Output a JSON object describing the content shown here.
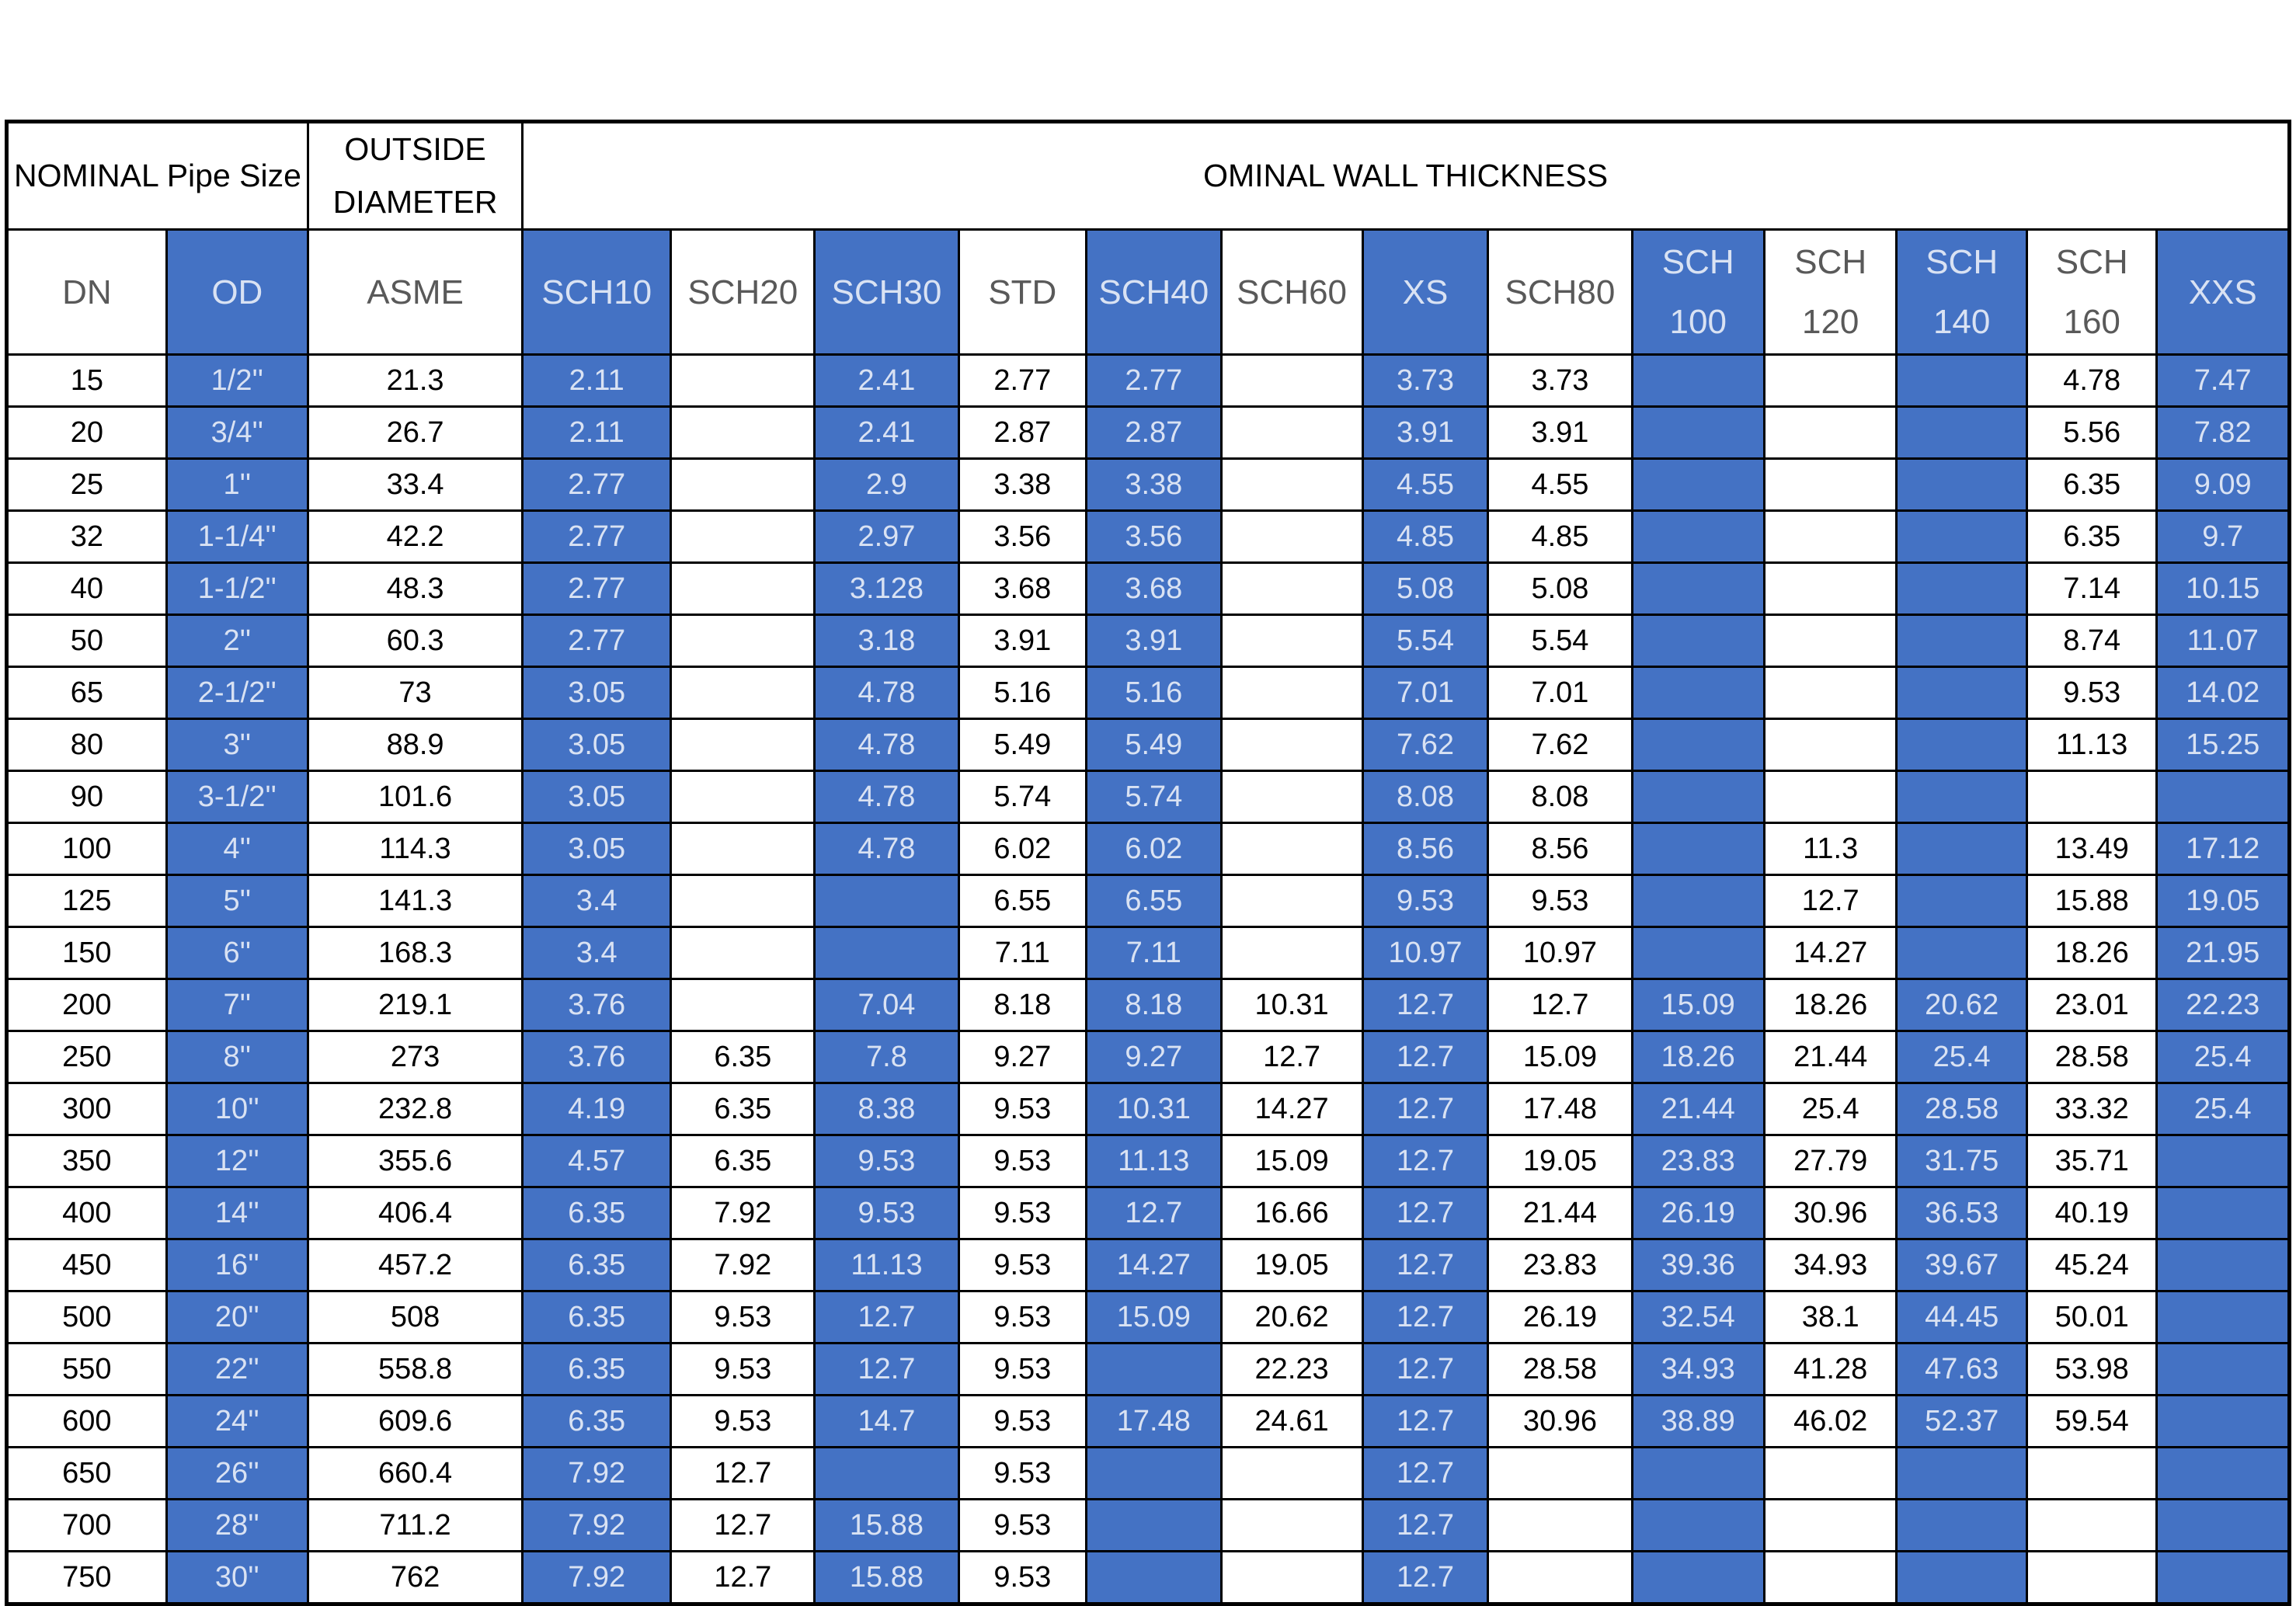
{
  "header": {
    "nominal_pipe_size": "NOMINAL Pipe Size",
    "outside_diameter": "OUTSIDE DIAMETER",
    "wall_thickness_title": "OMINAL WALL THICKNESS"
  },
  "colors": {
    "accent_blue": "#4472c4",
    "text_on_blue": "#d9e2f3",
    "header_text_gray": "#595959",
    "border_black": "#000000"
  },
  "columns": [
    {
      "key": "dn",
      "label": "DN",
      "blue": false
    },
    {
      "key": "od",
      "label": "OD",
      "blue": true
    },
    {
      "key": "asme",
      "label": "ASME",
      "blue": false
    },
    {
      "key": "sch10",
      "label": "SCH10",
      "blue": true
    },
    {
      "key": "sch20",
      "label": "SCH20",
      "blue": false
    },
    {
      "key": "sch30",
      "label": "SCH30",
      "blue": true
    },
    {
      "key": "std",
      "label": "STD",
      "blue": false
    },
    {
      "key": "sch40",
      "label": "SCH40",
      "blue": true
    },
    {
      "key": "sch60",
      "label": "SCH60",
      "blue": false
    },
    {
      "key": "xs",
      "label": "XS",
      "blue": true
    },
    {
      "key": "sch80",
      "label": "SCH80",
      "blue": false
    },
    {
      "key": "sch100",
      "label": "SCH\n100",
      "blue": true
    },
    {
      "key": "sch120",
      "label": "SCH\n120",
      "blue": false
    },
    {
      "key": "sch140",
      "label": "SCH\n140",
      "blue": true
    },
    {
      "key": "sch160",
      "label": "SCH\n160",
      "blue": false
    },
    {
      "key": "xxs",
      "label": "XXS",
      "blue": true
    }
  ],
  "rows": [
    [
      "15",
      "1/2''",
      "21.3",
      "2.11",
      "",
      "2.41",
      "2.77",
      "2.77",
      "",
      "3.73",
      "3.73",
      "",
      "",
      "",
      "4.78",
      "7.47"
    ],
    [
      "20",
      "3/4''",
      "26.7",
      "2.11",
      "",
      "2.41",
      "2.87",
      "2.87",
      "",
      "3.91",
      "3.91",
      "",
      "",
      "",
      "5.56",
      "7.82"
    ],
    [
      "25",
      "1''",
      "33.4",
      "2.77",
      "",
      "2.9",
      "3.38",
      "3.38",
      "",
      "4.55",
      "4.55",
      "",
      "",
      "",
      "6.35",
      "9.09"
    ],
    [
      "32",
      "1-1/4''",
      "42.2",
      "2.77",
      "",
      "2.97",
      "3.56",
      "3.56",
      "",
      "4.85",
      "4.85",
      "",
      "",
      "",
      "6.35",
      "9.7"
    ],
    [
      "40",
      "1-1/2''",
      "48.3",
      "2.77",
      "",
      "3.128",
      "3.68",
      "3.68",
      "",
      "5.08",
      "5.08",
      "",
      "",
      "",
      "7.14",
      "10.15"
    ],
    [
      "50",
      "2''",
      "60.3",
      "2.77",
      "",
      "3.18",
      "3.91",
      "3.91",
      "",
      "5.54",
      "5.54",
      "",
      "",
      "",
      "8.74",
      "11.07"
    ],
    [
      "65",
      "2-1/2''",
      "73",
      "3.05",
      "",
      "4.78",
      "5.16",
      "5.16",
      "",
      "7.01",
      "7.01",
      "",
      "",
      "",
      "9.53",
      "14.02"
    ],
    [
      "80",
      "3''",
      "88.9",
      "3.05",
      "",
      "4.78",
      "5.49",
      "5.49",
      "",
      "7.62",
      "7.62",
      "",
      "",
      "",
      "11.13",
      "15.25"
    ],
    [
      "90",
      "3-1/2''",
      "101.6",
      "3.05",
      "",
      "4.78",
      "5.74",
      "5.74",
      "",
      "8.08",
      "8.08",
      "",
      "",
      "",
      "",
      ""
    ],
    [
      "100",
      "4''",
      "114.3",
      "3.05",
      "",
      "4.78",
      "6.02",
      "6.02",
      "",
      "8.56",
      "8.56",
      "",
      "11.3",
      "",
      "13.49",
      "17.12"
    ],
    [
      "125",
      "5''",
      "141.3",
      "3.4",
      "",
      "",
      "6.55",
      "6.55",
      "",
      "9.53",
      "9.53",
      "",
      "12.7",
      "",
      "15.88",
      "19.05"
    ],
    [
      "150",
      "6''",
      "168.3",
      "3.4",
      "",
      "",
      "7.11",
      "7.11",
      "",
      "10.97",
      "10.97",
      "",
      "14.27",
      "",
      "18.26",
      "21.95"
    ],
    [
      "200",
      "7''",
      "219.1",
      "3.76",
      "",
      "7.04",
      "8.18",
      "8.18",
      "10.31",
      "12.7",
      "12.7",
      "15.09",
      "18.26",
      "20.62",
      "23.01",
      "22.23"
    ],
    [
      "250",
      "8''",
      "273",
      "3.76",
      "6.35",
      "7.8",
      "9.27",
      "9.27",
      "12.7",
      "12.7",
      "15.09",
      "18.26",
      "21.44",
      "25.4",
      "28.58",
      "25.4"
    ],
    [
      "300",
      "10''",
      "232.8",
      "4.19",
      "6.35",
      "8.38",
      "9.53",
      "10.31",
      "14.27",
      "12.7",
      "17.48",
      "21.44",
      "25.4",
      "28.58",
      "33.32",
      "25.4"
    ],
    [
      "350",
      "12''",
      "355.6",
      "4.57",
      "6.35",
      "9.53",
      "9.53",
      "11.13",
      "15.09",
      "12.7",
      "19.05",
      "23.83",
      "27.79",
      "31.75",
      "35.71",
      ""
    ],
    [
      "400",
      "14''",
      "406.4",
      "6.35",
      "7.92",
      "9.53",
      "9.53",
      "12.7",
      "16.66",
      "12.7",
      "21.44",
      "26.19",
      "30.96",
      "36.53",
      "40.19",
      ""
    ],
    [
      "450",
      "16''",
      "457.2",
      "6.35",
      "7.92",
      "11.13",
      "9.53",
      "14.27",
      "19.05",
      "12.7",
      "23.83",
      "39.36",
      "34.93",
      "39.67",
      "45.24",
      ""
    ],
    [
      "500",
      "20''",
      "508",
      "6.35",
      "9.53",
      "12.7",
      "9.53",
      "15.09",
      "20.62",
      "12.7",
      "26.19",
      "32.54",
      "38.1",
      "44.45",
      "50.01",
      ""
    ],
    [
      "550",
      "22''",
      "558.8",
      "6.35",
      "9.53",
      "12.7",
      "9.53",
      "",
      "22.23",
      "12.7",
      "28.58",
      "34.93",
      "41.28",
      "47.63",
      "53.98",
      ""
    ],
    [
      "600",
      "24''",
      "609.6",
      "6.35",
      "9.53",
      "14.7",
      "9.53",
      "17.48",
      "24.61",
      "12.7",
      "30.96",
      "38.89",
      "46.02",
      "52.37",
      "59.54",
      ""
    ],
    [
      "650",
      "26''",
      "660.4",
      "7.92",
      "12.7",
      "",
      "9.53",
      "",
      "",
      "12.7",
      "",
      "",
      "",
      "",
      "",
      ""
    ],
    [
      "700",
      "28''",
      "711.2",
      "7.92",
      "12.7",
      "15.88",
      "9.53",
      "",
      "",
      "12.7",
      "",
      "",
      "",
      "",
      "",
      ""
    ],
    [
      "750",
      "30''",
      "762",
      "7.92",
      "12.7",
      "15.88",
      "9.53",
      "",
      "",
      "12.7",
      "",
      "",
      "",
      "",
      "",
      ""
    ]
  ]
}
